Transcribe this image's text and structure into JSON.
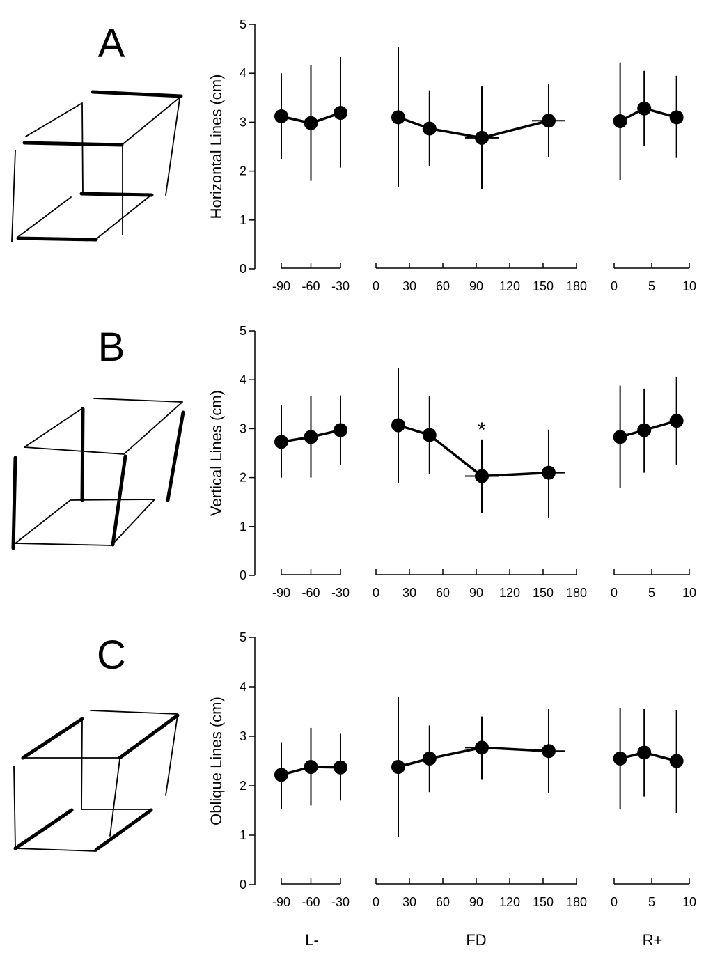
{
  "chart_data": [
    {
      "type": "line",
      "panel": "A",
      "ylabel": "Horizontal Lines (cm)",
      "ylim": [
        0,
        5
      ],
      "yticks": [
        "0",
        "1",
        "2",
        "3",
        "4",
        "5"
      ],
      "groups": [
        {
          "name": "L-",
          "x_ticks": [
            "-90",
            "-60",
            "-30"
          ],
          "xlim": [
            -90,
            -30
          ],
          "points": [
            {
              "x": -90,
              "y": 3.12,
              "err_low": 2.25,
              "err_high": 4.0
            },
            {
              "x": -60,
              "y": 2.98,
              "err_low": 1.8,
              "err_high": 4.17
            },
            {
              "x": -30,
              "y": 3.19,
              "err_low": 2.07,
              "err_high": 4.33
            }
          ]
        },
        {
          "name": "FD",
          "x_ticks": [
            "0",
            "30",
            "60",
            "90",
            "120",
            "150",
            "180"
          ],
          "xlim": [
            0,
            180
          ],
          "points": [
            {
              "x": 20,
              "y": 3.1,
              "err_low": 1.68,
              "err_high": 4.53
            },
            {
              "x": 48,
              "y": 2.87,
              "err_low": 2.1,
              "err_high": 3.65
            },
            {
              "x": 95,
              "y": 2.68,
              "err_low": 1.63,
              "err_high": 3.73,
              "x_low": 80,
              "x_high": 110
            },
            {
              "x": 155,
              "y": 3.03,
              "err_low": 2.28,
              "err_high": 3.78,
              "x_low": 140,
              "x_high": 170
            }
          ]
        },
        {
          "name": "R+",
          "x_ticks": [
            "0",
            "5",
            "10"
          ],
          "xlim": [
            0,
            10
          ],
          "points": [
            {
              "x": 0.8,
              "y": 3.02,
              "err_low": 1.82,
              "err_high": 4.22
            },
            {
              "x": 4.0,
              "y": 3.28,
              "err_low": 2.52,
              "err_high": 4.05
            },
            {
              "x": 8.3,
              "y": 3.1,
              "err_low": 2.27,
              "err_high": 3.95
            }
          ]
        }
      ]
    },
    {
      "type": "line",
      "panel": "B",
      "ylabel": "Vertical Lines (cm)",
      "ylim": [
        0,
        5
      ],
      "yticks": [
        "0",
        "1",
        "2",
        "3",
        "4",
        "5"
      ],
      "annotation": "*",
      "groups": [
        {
          "name": "L-",
          "x_ticks": [
            "-90",
            "-60",
            "-30"
          ],
          "xlim": [
            -90,
            -30
          ],
          "points": [
            {
              "x": -90,
              "y": 2.73,
              "err_low": 2.0,
              "err_high": 3.48
            },
            {
              "x": -60,
              "y": 2.83,
              "err_low": 2.0,
              "err_high": 3.67
            },
            {
              "x": -30,
              "y": 2.97,
              "err_low": 2.25,
              "err_high": 3.68
            }
          ]
        },
        {
          "name": "FD",
          "x_ticks": [
            "0",
            "30",
            "60",
            "90",
            "120",
            "150",
            "180"
          ],
          "xlim": [
            0,
            180
          ],
          "points": [
            {
              "x": 20,
              "y": 3.07,
              "err_low": 1.88,
              "err_high": 4.23
            },
            {
              "x": 48,
              "y": 2.87,
              "err_low": 2.08,
              "err_high": 3.67
            },
            {
              "x": 95,
              "y": 2.03,
              "err_low": 1.28,
              "err_high": 2.78,
              "x_low": 80,
              "x_high": 110,
              "marker": "*"
            },
            {
              "x": 155,
              "y": 2.1,
              "err_low": 1.18,
              "err_high": 2.98,
              "x_low": 140,
              "x_high": 170
            }
          ]
        },
        {
          "name": "R+",
          "x_ticks": [
            "0",
            "5",
            "10"
          ],
          "xlim": [
            0,
            10
          ],
          "points": [
            {
              "x": 0.8,
              "y": 2.83,
              "err_low": 1.78,
              "err_high": 3.88
            },
            {
              "x": 4.0,
              "y": 2.97,
              "err_low": 2.1,
              "err_high": 3.82
            },
            {
              "x": 8.3,
              "y": 3.16,
              "err_low": 2.25,
              "err_high": 4.06
            }
          ]
        }
      ]
    },
    {
      "type": "line",
      "panel": "C",
      "ylabel": "Oblique Lines (cm)",
      "ylim": [
        0,
        5
      ],
      "yticks": [
        "0",
        "1",
        "2",
        "3",
        "4",
        "5"
      ],
      "groups": [
        {
          "name": "L-",
          "x_ticks": [
            "-90",
            "-60",
            "-30"
          ],
          "xlim": [
            -90,
            -30
          ],
          "points": [
            {
              "x": -90,
              "y": 2.22,
              "err_low": 1.52,
              "err_high": 2.88
            },
            {
              "x": -60,
              "y": 2.38,
              "err_low": 1.6,
              "err_high": 3.17
            },
            {
              "x": -30,
              "y": 2.37,
              "err_low": 1.7,
              "err_high": 3.05
            }
          ]
        },
        {
          "name": "FD",
          "x_ticks": [
            "0",
            "30",
            "60",
            "90",
            "120",
            "150",
            "180"
          ],
          "xlim": [
            0,
            180
          ],
          "points": [
            {
              "x": 20,
              "y": 2.38,
              "err_low": 0.97,
              "err_high": 3.8
            },
            {
              "x": 48,
              "y": 2.55,
              "err_low": 1.87,
              "err_high": 3.22
            },
            {
              "x": 95,
              "y": 2.77,
              "err_low": 2.12,
              "err_high": 3.4,
              "x_low": 80,
              "x_high": 110
            },
            {
              "x": 155,
              "y": 2.7,
              "err_low": 1.85,
              "err_high": 3.55,
              "x_low": 140,
              "x_high": 170
            }
          ]
        },
        {
          "name": "R+",
          "x_ticks": [
            "0",
            "5",
            "10"
          ],
          "xlim": [
            0,
            10
          ],
          "points": [
            {
              "x": 0.8,
              "y": 2.55,
              "err_low": 1.53,
              "err_high": 3.57
            },
            {
              "x": 4.0,
              "y": 2.67,
              "err_low": 1.78,
              "err_high": 3.55
            },
            {
              "x": 8.3,
              "y": 2.5,
              "err_low": 1.45,
              "err_high": 3.53
            }
          ]
        }
      ]
    }
  ],
  "x_group_labels": [
    "L-",
    "FD",
    "R+"
  ]
}
